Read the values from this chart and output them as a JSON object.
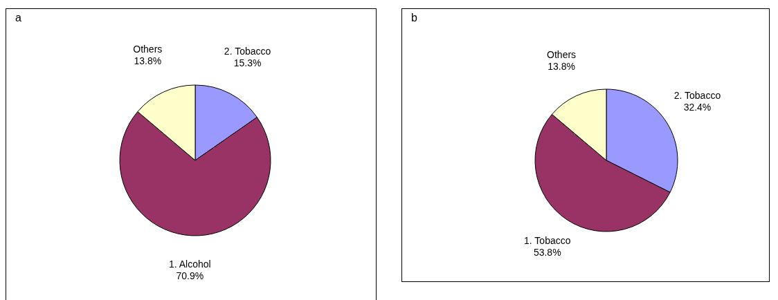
{
  "chart_data": [
    {
      "type": "pie",
      "title": "a",
      "categories": [
        "2. Tobacco",
        "1. Alcohol",
        "Others"
      ],
      "values": [
        15.3,
        70.9,
        13.8
      ],
      "colors": [
        "#9999ff",
        "#993366",
        "#ffffcc"
      ],
      "value_labels": [
        "15.3%",
        "70.9%",
        "13.8%"
      ],
      "legend": false
    },
    {
      "type": "pie",
      "title": "b",
      "categories": [
        "2. Tobacco",
        "1. Tobacco",
        "Others"
      ],
      "values": [
        32.4,
        53.8,
        13.8
      ],
      "colors": [
        "#9999ff",
        "#993366",
        "#ffffcc"
      ],
      "value_labels": [
        "32.4%",
        "53.8%",
        "13.8%"
      ],
      "legend": false
    }
  ]
}
